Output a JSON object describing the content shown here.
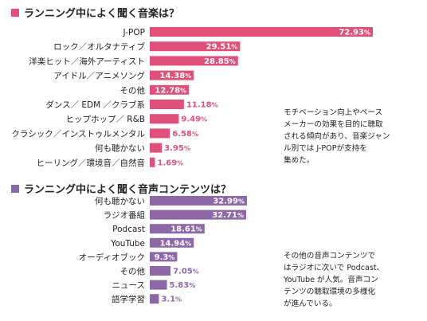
{
  "chart_data": [
    {
      "type": "bar",
      "title": "ランニング中によく聞く音楽は？",
      "color": "#e0517a",
      "categories": [
        "J-POP",
        "ロック／オルタナティブ",
        "洋楽ヒット／海外アーティスト",
        "アイドル／アニメソング",
        "その他",
        "ダンス／ EDM ／クラブ系",
        "ヒップホップ／ R&B",
        "クラシック／インストゥルメンタル",
        "何も聴かない",
        "ヒーリング／環境音／自然音"
      ],
      "values": [
        72.93,
        29.51,
        28.85,
        14.38,
        12.78,
        11.18,
        9.49,
        6.58,
        3.95,
        1.69
      ],
      "value_labels": [
        "72.93",
        "29.51",
        "28.85",
        "14.38",
        "12.78",
        "11.18",
        "9.49",
        "6.58",
        "3.95",
        "1.69"
      ],
      "unit": "%",
      "note": "モチベーション向上やペース\nメーカーの効果を目的に聴取\nされる傾向があり、音楽ジャン\nル別では J-POPが支持を\n集めた。"
    },
    {
      "type": "bar",
      "title": "ランニング中によく聞く音声コンテンツは？",
      "color": "#8e67a8",
      "categories": [
        "何も聴かない",
        "ラジオ番組",
        "Podcast",
        "YouTube",
        "オーディオブック",
        "その他",
        "ニュース",
        "語学学習"
      ],
      "values": [
        32.99,
        32.71,
        18.61,
        14.94,
        9.3,
        7.05,
        5.83,
        3.1
      ],
      "value_labels": [
        "32.99",
        "32.71",
        "18.61",
        "14.94",
        "9.3",
        "7.05",
        "5.83",
        "3.1"
      ],
      "unit": "%",
      "note": "その他の音声コンテンツで\nはラジオに次いで Podcast、\nYouTube が人気。音声コン\nテンツの聴取環境の多様化\nが進んでいる。"
    }
  ]
}
